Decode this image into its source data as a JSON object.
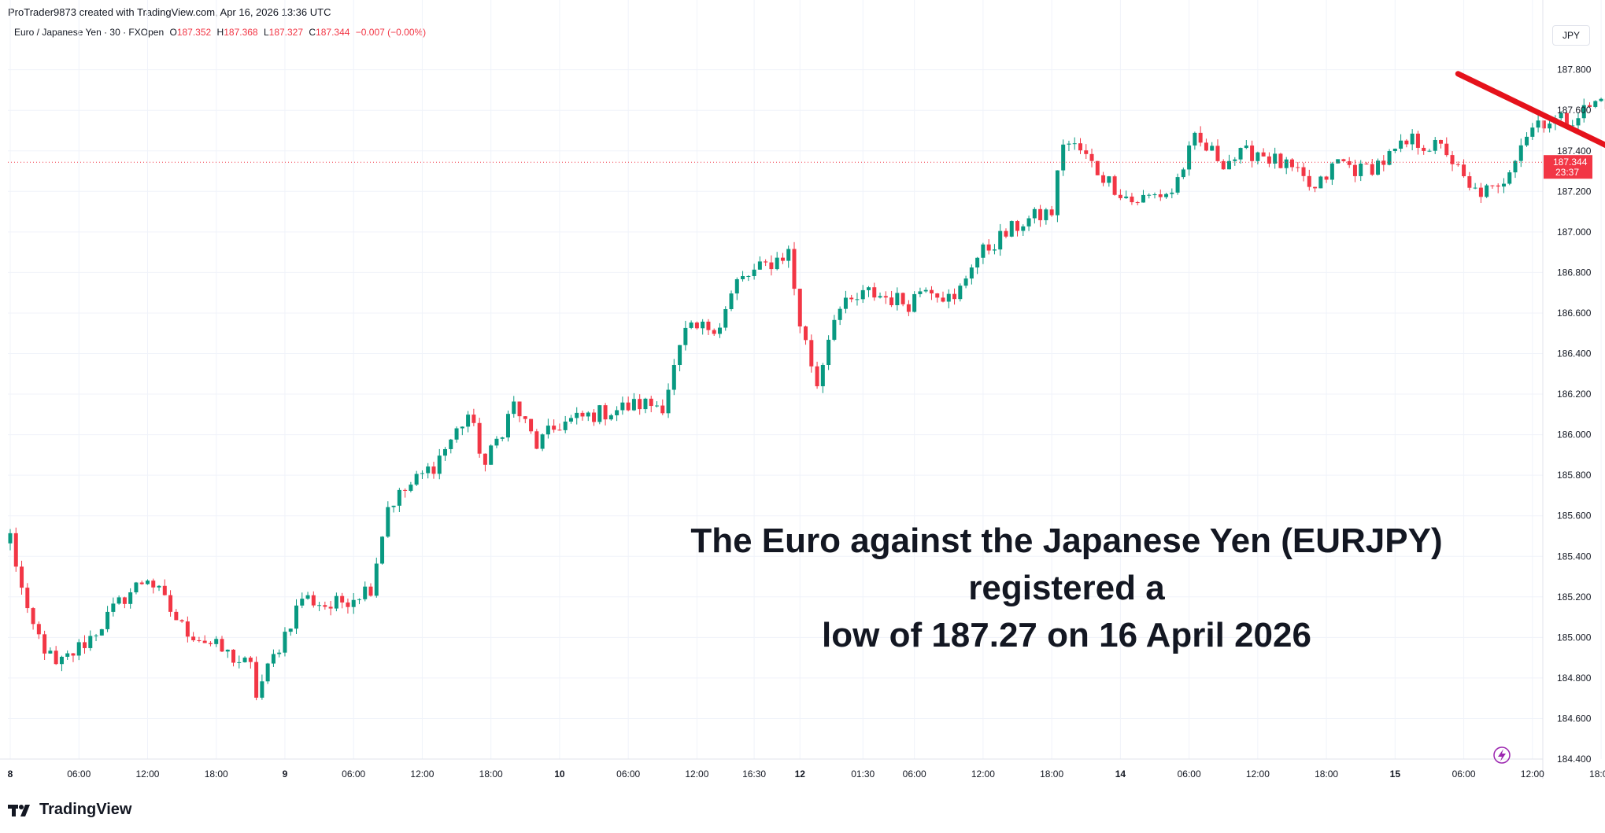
{
  "header": {
    "credit": "ProTrader9873 created with TradingView.com, Apr 16, 2026 13:36 UTC"
  },
  "legend": {
    "symbol": "Euro / Japanese Yen · 30 · FXOpen",
    "open_label": "O",
    "open": "187.352",
    "high_label": "H",
    "high": "187.368",
    "low_label": "L",
    "low": "187.327",
    "close_label": "C",
    "close": "187.344",
    "change": "−0.007 (−0.00%)"
  },
  "currency_button": "JPY",
  "price_tag": {
    "price": "187.344",
    "countdown": "23:37"
  },
  "annotation": {
    "line1": "The Euro against the Japanese Yen (EURJPY) registered a",
    "line2": "low of 187.27 on 16 April 2026"
  },
  "footer": {
    "brand": "TradingView"
  },
  "colors": {
    "up": "#089981",
    "down": "#f23645",
    "arrow": "#e5121b",
    "grid": "#f0f3fa"
  },
  "chart_data": {
    "type": "candlestick",
    "title": "Euro / Japanese Yen · 30 · FXOpen",
    "ylim": [
      184.4,
      187.95
    ],
    "y_ticks": [
      "187.800",
      "187.600",
      "187.400",
      "187.200",
      "187.000",
      "186.800",
      "186.600",
      "186.400",
      "186.200",
      "186.000",
      "185.800",
      "185.600",
      "185.400",
      "185.200",
      "185.000",
      "184.800",
      "184.600",
      "184.400"
    ],
    "x_ticks": [
      "8",
      "06:00",
      "12:00",
      "18:00",
      "9",
      "06:00",
      "12:00",
      "18:00",
      "10",
      "06:00",
      "12:00",
      "16:30",
      "12",
      "01:30",
      "06:00",
      "12:00",
      "18:00",
      "14",
      "06:00",
      "12:00",
      "18:00",
      "15",
      "06:00",
      "12:00",
      "18:00",
      "16",
      "06:00",
      "12:00",
      "18:0"
    ],
    "x_tick_index": [
      0,
      12,
      24,
      36,
      48,
      60,
      72,
      84,
      96,
      108,
      120,
      130,
      138,
      149,
      158,
      170,
      182,
      194,
      206,
      218,
      230,
      242,
      254,
      266,
      278,
      290,
      302,
      314,
      326
    ],
    "last_price": 187.344,
    "anchors": [
      [
        0,
        185.5
      ],
      [
        3,
        185.1
      ],
      [
        8,
        184.85
      ],
      [
        14,
        185.0
      ],
      [
        20,
        185.2
      ],
      [
        24,
        185.3
      ],
      [
        30,
        185.05
      ],
      [
        36,
        184.95
      ],
      [
        42,
        184.85
      ],
      [
        43,
        184.72
      ],
      [
        46,
        184.9
      ],
      [
        51,
        185.2
      ],
      [
        56,
        185.15
      ],
      [
        63,
        185.25
      ],
      [
        66,
        185.65
      ],
      [
        74,
        185.85
      ],
      [
        80,
        186.1
      ],
      [
        83,
        185.85
      ],
      [
        88,
        186.15
      ],
      [
        92,
        185.95
      ],
      [
        96,
        186.05
      ],
      [
        102,
        186.1
      ],
      [
        110,
        186.15
      ],
      [
        114,
        186.15
      ],
      [
        118,
        186.5
      ],
      [
        124,
        186.55
      ],
      [
        127,
        186.75
      ],
      [
        136,
        186.9
      ],
      [
        138,
        186.55
      ],
      [
        141,
        186.25
      ],
      [
        144,
        186.6
      ],
      [
        150,
        186.7
      ],
      [
        157,
        186.65
      ],
      [
        160,
        186.75
      ],
      [
        165,
        186.65
      ],
      [
        168,
        186.85
      ],
      [
        172,
        186.95
      ],
      [
        177,
        187.05
      ],
      [
        182,
        187.1
      ],
      [
        184,
        187.45
      ],
      [
        187,
        187.4
      ],
      [
        190,
        187.3
      ],
      [
        196,
        187.15
      ],
      [
        203,
        187.2
      ],
      [
        207,
        187.45
      ],
      [
        212,
        187.35
      ],
      [
        218,
        187.4
      ],
      [
        224,
        187.3
      ],
      [
        228,
        187.2
      ],
      [
        232,
        187.35
      ],
      [
        236,
        187.3
      ],
      [
        240,
        187.35
      ],
      [
        245,
        187.45
      ],
      [
        251,
        187.4
      ],
      [
        255,
        187.2
      ],
      [
        260,
        187.2
      ],
      [
        264,
        187.45
      ],
      [
        267,
        187.55
      ],
      [
        272,
        187.55
      ],
      [
        278,
        187.65
      ],
      [
        283,
        187.6
      ],
      [
        290,
        187.5
      ],
      [
        294,
        187.35
      ],
      [
        297,
        187.2
      ],
      [
        301,
        187.45
      ],
      [
        305,
        187.5
      ],
      [
        308,
        187.35
      ],
      [
        314,
        187.35
      ],
      [
        317,
        187.45
      ],
      [
        319,
        187.344
      ]
    ],
    "candle_count": 320,
    "arrow": {
      "from": {
        "index": 253,
        "price": 187.78
      },
      "to": {
        "index": 305,
        "price": 187.07
      }
    }
  }
}
